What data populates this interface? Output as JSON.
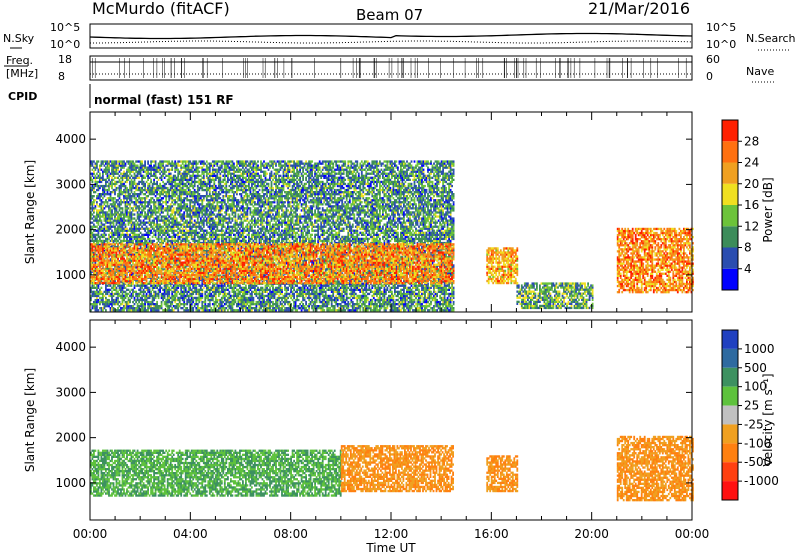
{
  "header": {
    "station": "McMurdo (fitACF)",
    "beam": "Beam 07",
    "date": "21/Mar/2016"
  },
  "status_strip": {
    "nsky_label": "N.Sky",
    "nsearch_label": "N.Search",
    "freq_label_1": "Freq.",
    "freq_label_2": "[MHz]",
    "nave_label": "Nave",
    "cpid_label": "CPID",
    "cpid_value": "normal (fast) 151 RF",
    "noise_ticks": [
      "10^5",
      "10^0"
    ],
    "freq_ticks": [
      "18",
      "8"
    ],
    "nave_ticks": [
      "60",
      "0"
    ]
  },
  "colors": {
    "frame": "#000000",
    "power_scale": [
      "#0000ff",
      "#2a4db0",
      "#3c8c5a",
      "#6cc33a",
      "#f0e020",
      "#f0a020",
      "#ff7010",
      "#ff2000"
    ],
    "velocity_scale": [
      "#2040c0",
      "#2e6aa0",
      "#3d9160",
      "#5ec23c",
      "#c0c0c0",
      "#f0a020",
      "#ff8010",
      "#ff4010",
      "#ff1010"
    ]
  },
  "chart_data": [
    {
      "type": "heatmap",
      "name": "power-panel",
      "ylabel": "Slant Range [km]",
      "xlabel": "",
      "ylim": [
        180,
        4600
      ],
      "xlim": [
        0,
        24
      ],
      "y_ticks": [
        "1000",
        "2000",
        "3000",
        "4000"
      ],
      "colorbar_label": "Power [dB]",
      "colorbar_range": [
        0,
        32
      ],
      "colorbar_ticks": [
        "4",
        "8",
        "12",
        "16",
        "20",
        "24",
        "28"
      ],
      "regions": [
        {
          "t0": 0.0,
          "t1": 14.5,
          "r0": 200,
          "r1": 3500,
          "value": 10
        },
        {
          "t0": 0.0,
          "t1": 14.5,
          "r0": 800,
          "r1": 1700,
          "value": 24
        },
        {
          "t0": 15.8,
          "t1": 17.0,
          "r0": 800,
          "r1": 1600,
          "value": 22
        },
        {
          "t0": 17.0,
          "t1": 20.0,
          "r0": 250,
          "r1": 800,
          "value": 12
        },
        {
          "t0": 21.0,
          "t1": 24.0,
          "r0": 600,
          "r1": 2000,
          "value": 24
        }
      ]
    },
    {
      "type": "heatmap",
      "name": "velocity-panel",
      "ylabel": "Slant Range [km]",
      "xlabel": "Time UT",
      "ylim": [
        180,
        4600
      ],
      "xlim": [
        0,
        24
      ],
      "y_ticks": [
        "1000",
        "2000",
        "3000",
        "4000"
      ],
      "x_ticks": [
        "00:00",
        "04:00",
        "08:00",
        "12:00",
        "16:00",
        "20:00",
        "00:00"
      ],
      "colorbar_label": "Velocity [m s⁻¹]",
      "colorbar_ticks": [
        "1000",
        "500",
        "100",
        "25",
        "-25",
        "-100",
        "-500",
        "-1000"
      ],
      "regions": [
        {
          "t0": 0.0,
          "t1": 10.0,
          "r0": 700,
          "r1": 1700,
          "value": 100
        },
        {
          "t0": 10.0,
          "t1": 14.5,
          "r0": 800,
          "r1": 1800,
          "value": -100
        },
        {
          "t0": 15.8,
          "t1": 17.0,
          "r0": 800,
          "r1": 1600,
          "value": -100
        },
        {
          "t0": 21.0,
          "t1": 24.0,
          "r0": 600,
          "r1": 2000,
          "value": -100
        }
      ]
    }
  ]
}
